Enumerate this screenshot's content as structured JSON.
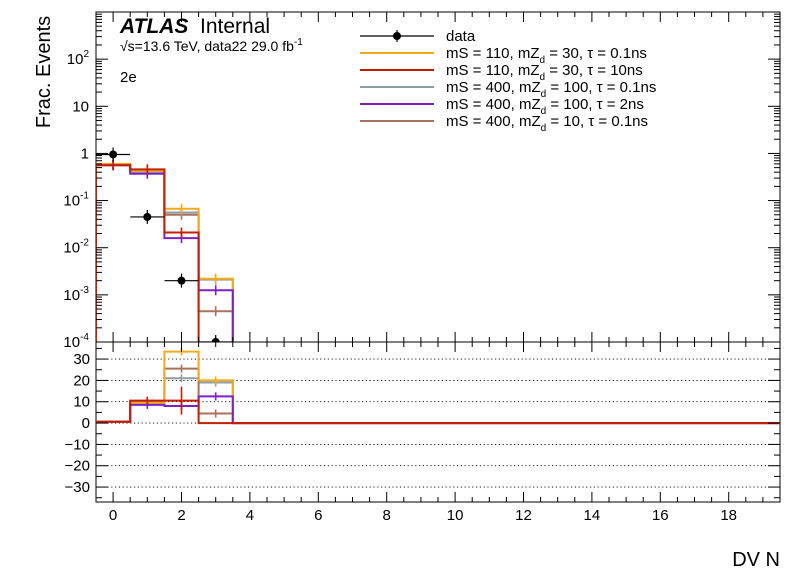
{
  "header": {
    "experiment": "ATLAS",
    "status": "Internal",
    "energy_prefix": "√s=13.6 TeV, data22 29.0 fb",
    "energy_sup": "-1",
    "channel": "2e"
  },
  "colors": {
    "data": "#000000",
    "ms110_tau01": "#f2a91b",
    "ms110_tau10": "#c41e00",
    "ms400_mz100_tau01": "#8f9ea4",
    "ms400_mz100_tau2": "#7b22c7",
    "ms400_mz10_tau01": "#a9725a"
  },
  "chart_data": [
    {
      "type": "histogram",
      "panel": "main",
      "ylabel": "Frac. Events",
      "xlabel": "",
      "yscale": "log",
      "ylim": [
        0.0001,
        1000
      ],
      "xlim": [
        -0.5,
        19.5
      ],
      "bin_edges": [
        -0.5,
        0.5,
        1.5,
        2.5,
        3.5,
        4.5
      ],
      "ytick_labels": [
        {
          "base": "10",
          "exp": "-4",
          "value": 0.0001
        },
        {
          "base": "10",
          "exp": "-3",
          "value": 0.001
        },
        {
          "base": "10",
          "exp": "-2",
          "value": 0.01
        },
        {
          "base": "10",
          "exp": "-1",
          "value": 0.1
        },
        {
          "base": "1",
          "exp": "",
          "value": 1
        },
        {
          "base": "10",
          "exp": "",
          "value": 10
        },
        {
          "base": "10",
          "exp": "2",
          "value": 100
        }
      ],
      "legend_placement": "top-right",
      "series": [
        {
          "key": "data",
          "name": "data",
          "style": "points",
          "x": [
            0,
            1,
            2,
            3
          ],
          "values": [
            0.95,
            0.045,
            0.002,
            0.0001
          ]
        },
        {
          "key": "ms110_tau01",
          "name": "mS = 110, mZ_d = 30, τ = 0.1ns",
          "legend": {
            "prefix": "mS = 110, mZ",
            "sub": "d",
            "suffix": " = 30, τ = 0.1ns"
          },
          "style": "step",
          "values": [
            0.6,
            0.43,
            0.067,
            0.0022
          ]
        },
        {
          "key": "ms110_tau10",
          "name": "mS = 110, mZ_d = 30, τ = 10ns",
          "legend": {
            "prefix": "mS = 110, mZ",
            "sub": "d",
            "suffix": " = 30, τ = 10ns"
          },
          "style": "step",
          "values": [
            0.56,
            0.46,
            0.021,
            5e-05
          ]
        },
        {
          "key": "ms400_mz100_tau01",
          "name": "mS = 400, mZ_d = 100, τ = 0.1ns",
          "legend": {
            "prefix": "mS = 400, mZ",
            "sub": "d",
            "suffix": " = 100, τ = 0.1ns"
          },
          "style": "step",
          "values": [
            0.58,
            0.4,
            0.056,
            0.0021
          ]
        },
        {
          "key": "ms400_mz100_tau2",
          "name": "mS = 400, mZ_d = 100, τ = 2ns",
          "legend": {
            "prefix": "mS = 400, mZ",
            "sub": "d",
            "suffix": " = 100, τ = 2ns"
          },
          "style": "step",
          "values": [
            0.56,
            0.37,
            0.016,
            0.00125
          ]
        },
        {
          "key": "ms400_mz10_tau01",
          "name": "mS = 400, mZ_d = 10, τ = 0.1ns",
          "legend": {
            "prefix": "mS = 400, mZ",
            "sub": "d",
            "suffix": " = 10, τ = 0.1ns"
          },
          "style": "step",
          "values": [
            0.57,
            0.44,
            0.05,
            0.00045
          ]
        }
      ]
    },
    {
      "type": "histogram",
      "panel": "ratio",
      "xlabel": "DV N",
      "ylabel": "",
      "ylim": [
        -37,
        38
      ],
      "xlim": [
        -0.5,
        19.5
      ],
      "grid": "horizontal-dotted",
      "yticks": [
        -30,
        -20,
        -10,
        0,
        10,
        20,
        30
      ],
      "ytick_labels": [
        "−30",
        "−20",
        "−10",
        "0",
        "10",
        "20",
        "30"
      ],
      "xticks": [
        0,
        2,
        4,
        6,
        8,
        10,
        12,
        14,
        16,
        18
      ],
      "xtick_labels": [
        "0",
        "2",
        "4",
        "6",
        "8",
        "10",
        "12",
        "14",
        "16",
        "18"
      ],
      "bin_edges": [
        -0.5,
        0.5,
        1.5,
        2.5,
        3.5,
        4.5
      ],
      "series": [
        {
          "key": "ms110_tau01",
          "values": [
            0.6,
            9.5,
            33.5,
            20,
            0
          ]
        },
        {
          "key": "ms110_tau10",
          "values": [
            0.6,
            10.5,
            10.5,
            0,
            0
          ]
        },
        {
          "key": "ms400_mz100_tau01",
          "values": [
            0.6,
            9,
            21,
            19,
            0
          ]
        },
        {
          "key": "ms400_mz100_tau2",
          "values": [
            0.6,
            8.5,
            8,
            12.5,
            0
          ]
        },
        {
          "key": "ms400_mz10_tau01",
          "values": [
            0.6,
            9.8,
            25.5,
            4.5,
            0
          ]
        }
      ]
    }
  ]
}
